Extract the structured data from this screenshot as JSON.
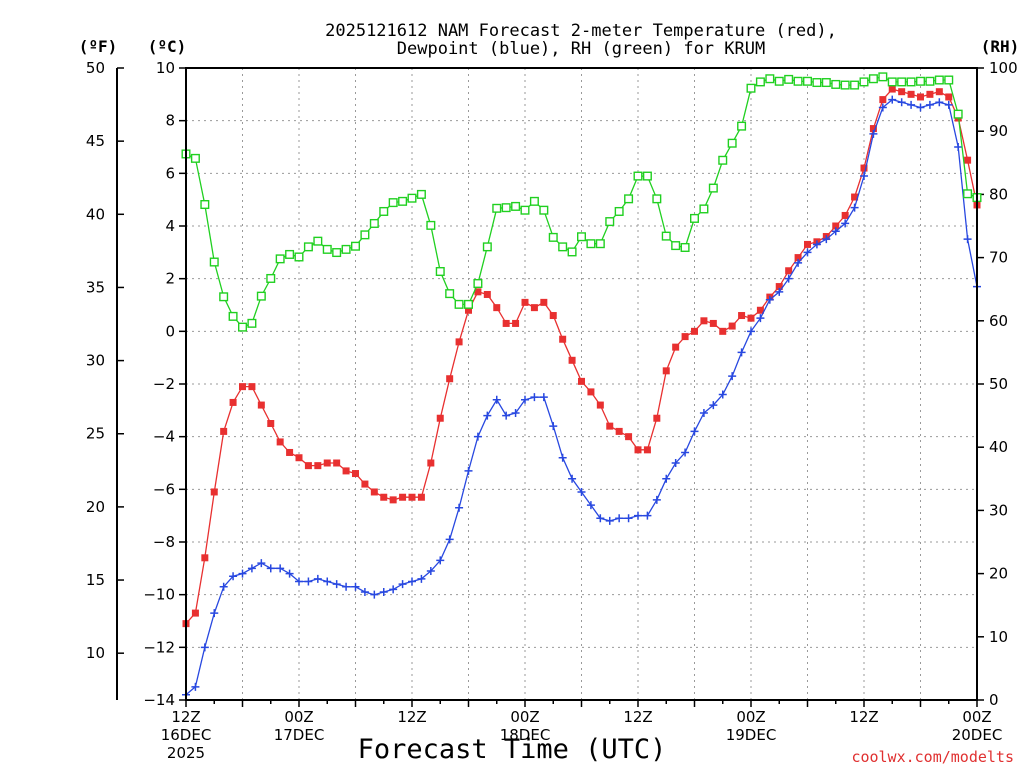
{
  "chart_data": {
    "type": "line",
    "title_lines": [
      "2025121612 NAM Forecast 2-meter Temperature (red),",
      "Dewpoint (blue), RH (green) for KRUM"
    ],
    "unit_labels": {
      "fahrenheit": "(ºF)",
      "celsius": "(ºC)",
      "rh": "(RH)"
    },
    "xlabel": "Forecast Time (UTC)",
    "credit": "coolwx.com/modelts",
    "x_range_hours": [
      0,
      84
    ],
    "x_ticks": [
      {
        "h": 0,
        "lines": [
          "12Z",
          "16DEC",
          "2025"
        ]
      },
      {
        "h": 12,
        "lines": [
          "00Z",
          "17DEC"
        ]
      },
      {
        "h": 24,
        "lines": [
          "12Z"
        ]
      },
      {
        "h": 36,
        "lines": [
          "00Z",
          "18DEC"
        ]
      },
      {
        "h": 48,
        "lines": [
          "12Z"
        ]
      },
      {
        "h": 60,
        "lines": [
          "00Z",
          "19DEC"
        ]
      },
      {
        "h": 72,
        "lines": [
          "12Z"
        ]
      },
      {
        "h": 84,
        "lines": [
          "00Z",
          "20DEC"
        ]
      }
    ],
    "celsius_axis": {
      "ylim": [
        -14,
        10
      ],
      "ticks": [
        "10",
        "8",
        "6",
        "4",
        "2",
        "0",
        "−2",
        "−4",
        "−6",
        "−8",
        "−10",
        "−12",
        "−14"
      ]
    },
    "fahrenheit_axis": {
      "ylim": [
        6.8,
        50
      ],
      "ticks": [
        "50",
        "45",
        "40",
        "35",
        "30",
        "25",
        "20",
        "15",
        "10"
      ]
    },
    "rh_axis": {
      "ylim": [
        0,
        100
      ],
      "ticks": [
        "100",
        "90",
        "80",
        "70",
        "60",
        "50",
        "40",
        "30",
        "20",
        "10",
        "0"
      ]
    },
    "series": [
      {
        "name": "Temperature",
        "axis": "celsius",
        "color": "#e83030",
        "marker": "filled-square",
        "x": [
          0,
          1,
          2,
          3,
          4,
          5,
          6,
          7,
          8,
          9,
          10,
          11,
          12,
          13,
          14,
          15,
          16,
          17,
          18,
          19,
          20,
          21,
          22,
          23,
          24,
          25,
          26,
          27,
          28,
          29,
          30,
          31,
          32,
          33,
          34,
          35,
          36,
          37,
          38,
          39,
          40,
          41,
          42,
          43,
          44,
          45,
          46,
          47,
          48,
          49,
          50,
          51,
          52,
          53,
          54,
          55,
          56,
          57,
          58,
          59,
          60,
          61,
          62,
          63,
          64,
          65,
          66,
          67,
          68,
          69,
          70,
          71,
          72,
          73,
          74,
          75,
          76,
          77,
          78,
          79,
          80,
          81,
          82,
          83,
          84
        ],
        "values": [
          -11.1,
          -10.7,
          -8.6,
          -6.1,
          -3.8,
          -2.7,
          -2.1,
          -2.1,
          -2.8,
          -3.5,
          -4.2,
          -4.6,
          -4.8,
          -5.1,
          -5.1,
          -5.0,
          -5.0,
          -5.3,
          -5.4,
          -5.8,
          -6.1,
          -6.3,
          -6.4,
          -6.3,
          -6.3,
          -6.3,
          -5.0,
          -3.3,
          -1.8,
          -0.4,
          0.8,
          1.5,
          1.4,
          0.9,
          0.3,
          0.3,
          1.1,
          0.9,
          1.1,
          0.6,
          -0.3,
          -1.1,
          -1.9,
          -2.3,
          -2.8,
          -3.6,
          -3.8,
          -4.0,
          -4.5,
          -4.5,
          -3.3,
          -1.5,
          -0.6,
          -0.2,
          0.0,
          0.4,
          0.3,
          0.0,
          0.2,
          0.6,
          0.5,
          0.8,
          1.3,
          1.7,
          2.3,
          2.8,
          3.3,
          3.4,
          3.6,
          4.0,
          4.4,
          5.1,
          6.2,
          7.7,
          8.8,
          9.2,
          9.1,
          9.0,
          8.9,
          9.0,
          9.1,
          8.9,
          8.1,
          6.5,
          4.8
        ]
      },
      {
        "name": "Dewpoint",
        "axis": "celsius",
        "color": "#2848e0",
        "marker": "plus",
        "x": [
          0,
          1,
          2,
          3,
          4,
          5,
          6,
          7,
          8,
          9,
          10,
          11,
          12,
          13,
          14,
          15,
          16,
          17,
          18,
          19,
          20,
          21,
          22,
          23,
          24,
          25,
          26,
          27,
          28,
          29,
          30,
          31,
          32,
          33,
          34,
          35,
          36,
          37,
          38,
          39,
          40,
          41,
          42,
          43,
          44,
          45,
          46,
          47,
          48,
          49,
          50,
          51,
          52,
          53,
          54,
          55,
          56,
          57,
          58,
          59,
          60,
          61,
          62,
          63,
          64,
          65,
          66,
          67,
          68,
          69,
          70,
          71,
          72,
          73,
          74,
          75,
          76,
          77,
          78,
          79,
          80,
          81,
          82,
          83,
          84
        ],
        "values": [
          -13.8,
          -13.5,
          -12.0,
          -10.7,
          -9.7,
          -9.3,
          -9.2,
          -9.0,
          -8.8,
          -9.0,
          -9.0,
          -9.2,
          -9.5,
          -9.5,
          -9.4,
          -9.5,
          -9.6,
          -9.7,
          -9.7,
          -9.9,
          -10.0,
          -9.9,
          -9.8,
          -9.6,
          -9.5,
          -9.4,
          -9.1,
          -8.7,
          -7.9,
          -6.7,
          -5.3,
          -4.0,
          -3.2,
          -2.6,
          -3.2,
          -3.1,
          -2.6,
          -2.5,
          -2.5,
          -3.6,
          -4.8,
          -5.6,
          -6.1,
          -6.6,
          -7.1,
          -7.2,
          -7.1,
          -7.1,
          -7.0,
          -7.0,
          -6.4,
          -5.6,
          -5.0,
          -4.6,
          -3.8,
          -3.1,
          -2.8,
          -2.4,
          -1.7,
          -0.8,
          0.0,
          0.5,
          1.2,
          1.5,
          2.0,
          2.6,
          3.0,
          3.3,
          3.5,
          3.8,
          4.1,
          4.7,
          5.9,
          7.5,
          8.5,
          8.8,
          8.7,
          8.6,
          8.5,
          8.6,
          8.7,
          8.6,
          7.0,
          3.5,
          1.7
        ]
      },
      {
        "name": "RH",
        "axis": "rh",
        "color": "#20d020",
        "marker": "open-square",
        "x": [
          0,
          1,
          2,
          3,
          4,
          5,
          6,
          7,
          8,
          9,
          10,
          11,
          12,
          13,
          14,
          15,
          16,
          17,
          18,
          19,
          20,
          21,
          22,
          23,
          24,
          25,
          26,
          27,
          28,
          29,
          30,
          31,
          32,
          33,
          34,
          35,
          36,
          37,
          38,
          39,
          40,
          41,
          42,
          43,
          44,
          45,
          46,
          47,
          48,
          49,
          50,
          51,
          52,
          53,
          54,
          55,
          56,
          57,
          58,
          59,
          60,
          61,
          62,
          63,
          64,
          65,
          66,
          67,
          68,
          69,
          70,
          71,
          72,
          73,
          74,
          75,
          76,
          77,
          78,
          79,
          80,
          81,
          82,
          83,
          84
        ],
        "values": [
          86.4,
          85.7,
          78.4,
          69.3,
          63.8,
          60.7,
          59.0,
          59.6,
          63.9,
          66.7,
          69.8,
          70.5,
          70.1,
          71.7,
          72.6,
          71.3,
          70.8,
          71.3,
          71.8,
          73.6,
          75.4,
          77.3,
          78.7,
          78.9,
          79.4,
          80.0,
          75.1,
          67.8,
          64.3,
          62.6,
          62.6,
          65.9,
          71.7,
          77.8,
          77.9,
          78.1,
          77.5,
          78.9,
          77.5,
          73.2,
          71.7,
          70.9,
          73.3,
          72.2,
          72.2,
          75.7,
          77.3,
          79.3,
          82.9,
          82.9,
          79.3,
          73.4,
          71.9,
          71.6,
          76.2,
          77.7,
          81.0,
          85.4,
          88.1,
          90.8,
          96.8,
          97.8,
          98.3,
          97.9,
          98.2,
          97.9,
          97.9,
          97.7,
          97.7,
          97.4,
          97.3,
          97.3,
          97.8,
          98.3,
          98.6,
          97.8,
          97.8,
          97.8,
          97.9,
          97.9,
          98.1,
          98.1,
          92.7,
          80.1,
          79.5
        ]
      }
    ]
  }
}
